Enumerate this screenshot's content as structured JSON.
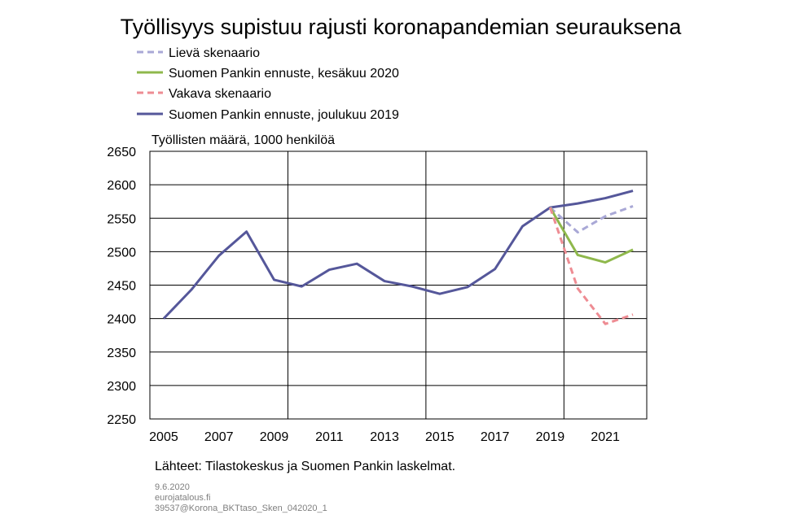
{
  "chart_data": {
    "type": "line",
    "title": "Työllisyys supistuu rajusti koronapandemian seurauksena",
    "ylabel": "Työllisten määrä, 1000 henkilöä",
    "xlabel": "",
    "ylim": [
      2250,
      2650
    ],
    "xlim": [
      2004.5,
      2022.5
    ],
    "y_ticks": [
      2250,
      2300,
      2350,
      2400,
      2450,
      2500,
      2550,
      2600,
      2650
    ],
    "x_tick_labels": [
      2005,
      2007,
      2009,
      2011,
      2013,
      2015,
      2017,
      2019,
      2021
    ],
    "x_gridlines": [
      2009.5,
      2014.5,
      2019.5
    ],
    "grid": "major y gridlines and vertical gridlines",
    "legend_position": "top",
    "series": [
      {
        "name": "Lievä skenaario",
        "color": "#a9a8d6",
        "style": "dashed",
        "x": [
          2019,
          2020,
          2021,
          2022
        ],
        "values": [
          2566,
          2529,
          2553,
          2568
        ]
      },
      {
        "name": "Suomen Pankin ennuste, kesäkuu 2020",
        "color": "#8fb84c",
        "style": "solid",
        "x": [
          2019,
          2020,
          2021,
          2022
        ],
        "values": [
          2566,
          2495,
          2484,
          2503
        ]
      },
      {
        "name": "Vakava skenaario",
        "color": "#ee8c93",
        "style": "dashed",
        "x": [
          2019,
          2020,
          2021,
          2022
        ],
        "values": [
          2566,
          2445,
          2392,
          2406
        ]
      },
      {
        "name": "Suomen Pankin ennuste, joulukuu 2019",
        "color": "#55579a",
        "style": "solid",
        "x": [
          2005,
          2006,
          2007,
          2008,
          2009,
          2010,
          2011,
          2012,
          2013,
          2014,
          2015,
          2016,
          2017,
          2018,
          2019,
          2020,
          2021,
          2022
        ],
        "values": [
          2400,
          2443,
          2494,
          2530,
          2458,
          2448,
          2473,
          2482,
          2456,
          2448,
          2437,
          2447,
          2474,
          2538,
          2566,
          2572,
          2580,
          2591
        ]
      }
    ],
    "source_note": "Lähteet: Tilastokeskus ja Suomen Pankin laskelmat.",
    "footer_lines": [
      "9.6.2020",
      "eurojatalous.fi",
      "39537@Korona_BKTtaso_Sken_042020_1"
    ]
  }
}
